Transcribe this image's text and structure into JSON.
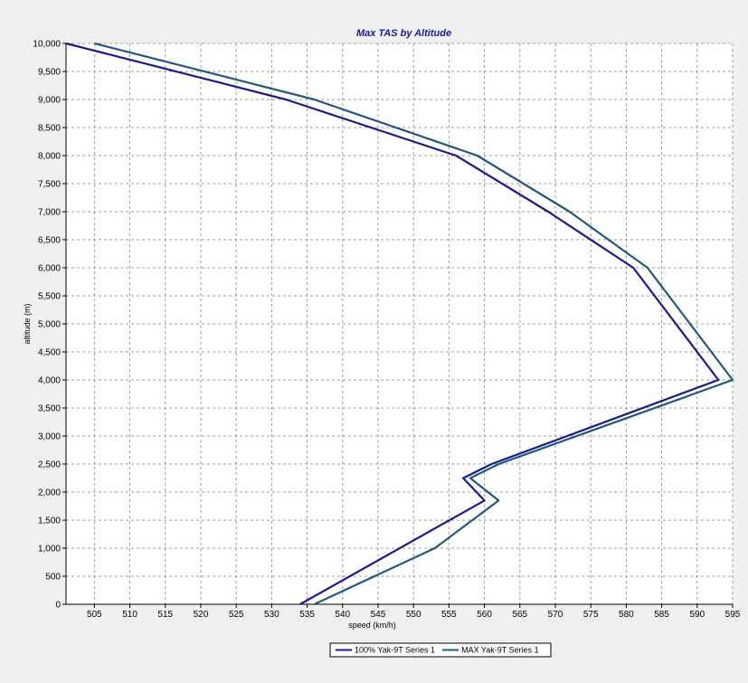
{
  "colors": {
    "background": "#f0f0f0",
    "plot_background": "#ffffff",
    "grid": "#9a9a9a",
    "title": "#1a1a9a"
  },
  "chart_data": {
    "type": "line",
    "title": "Max TAS by Altitude",
    "xlabel": "speed (km/h)",
    "ylabel": "altitude (m)",
    "xlim": [
      501,
      595
    ],
    "ylim": [
      0,
      10000
    ],
    "x_ticks": [
      505,
      510,
      515,
      520,
      525,
      530,
      535,
      540,
      545,
      550,
      555,
      560,
      565,
      570,
      575,
      580,
      585,
      590,
      595
    ],
    "y_ticks": [
      0,
      500,
      1000,
      1500,
      2000,
      2500,
      3000,
      3500,
      4000,
      4500,
      5000,
      5500,
      6000,
      6500,
      7000,
      7500,
      8000,
      8500,
      9000,
      9500,
      10000
    ],
    "x_tick_labels": [
      "505",
      "510",
      "515",
      "520",
      "525",
      "530",
      "535",
      "540",
      "545",
      "550",
      "555",
      "560",
      "565",
      "570",
      "575",
      "580",
      "585",
      "590",
      "595"
    ],
    "y_tick_labels": [
      "0",
      "500",
      "1,000",
      "1,500",
      "2,000",
      "2,500",
      "3,000",
      "3,500",
      "4,000",
      "4,500",
      "5,000",
      "5,500",
      "6,000",
      "6,500",
      "7,000",
      "7,500",
      "8,000",
      "8,500",
      "9,000",
      "9,500",
      "10,000"
    ],
    "grid": true,
    "legend_position": "bottom",
    "series": [
      {
        "name": "100% Yak-9T Series 1",
        "color": "#1a1a8c",
        "points": [
          [
            534,
            0
          ],
          [
            560,
            1850
          ],
          [
            557,
            2250
          ],
          [
            561,
            2500
          ],
          [
            593,
            4000
          ],
          [
            581,
            6000
          ],
          [
            569,
            7000
          ],
          [
            556,
            8000
          ],
          [
            532,
            9000
          ],
          [
            501,
            10000
          ]
        ]
      },
      {
        "name": "MAX Yak-9T Series 1",
        "color": "#1f5a78",
        "points": [
          [
            536,
            0
          ],
          [
            553,
            1000
          ],
          [
            562,
            1850
          ],
          [
            558,
            2250
          ],
          [
            562,
            2500
          ],
          [
            595,
            4000
          ],
          [
            583,
            6000
          ],
          [
            572,
            7000
          ],
          [
            559,
            8000
          ],
          [
            536,
            9000
          ],
          [
            505,
            10000
          ]
        ]
      }
    ]
  }
}
